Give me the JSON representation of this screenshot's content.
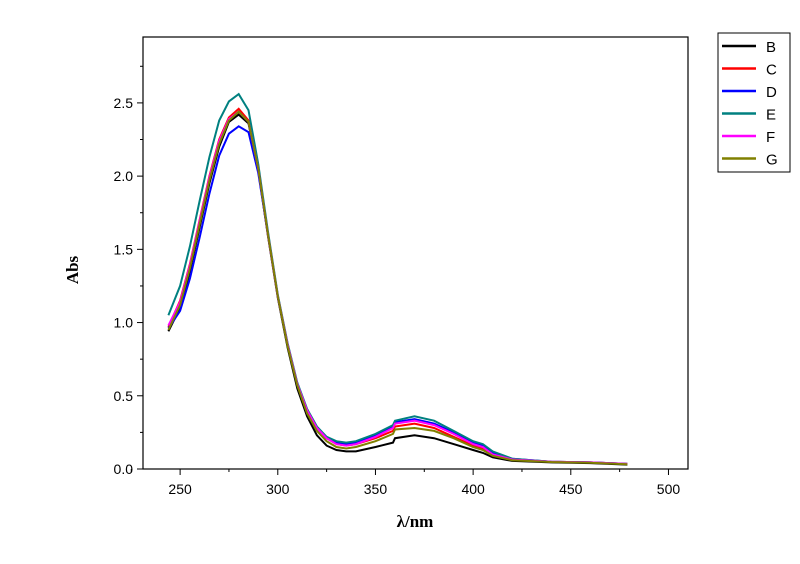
{
  "chart_data": {
    "type": "line",
    "title": "",
    "xlabel": "λ/nm",
    "ylabel": "Abs",
    "xlim": [
      231,
      510
    ],
    "ylim": [
      0,
      2.95
    ],
    "xticks": [
      250,
      300,
      350,
      400,
      450,
      500
    ],
    "xtick_labels": [
      "250",
      "300",
      "350",
      "400",
      "450",
      "500"
    ],
    "yticks": [
      0,
      0.5,
      1.0,
      1.5,
      2.0,
      2.5
    ],
    "ytick_labels": [
      "0.0",
      "0.5",
      "1.0",
      "1.5",
      "2.0",
      "2.5"
    ],
    "grid": false,
    "legend_position": "outside-top-right",
    "x": [
      244,
      250,
      255,
      260,
      265,
      270,
      275,
      280,
      285,
      290,
      295,
      300,
      305,
      310,
      315,
      320,
      325,
      330,
      335,
      340,
      350,
      359,
      360,
      370,
      380,
      390,
      400,
      405,
      410,
      420,
      440,
      460,
      479
    ],
    "series": [
      {
        "name": "B",
        "color": "#000000",
        "values": [
          0.94,
          1.1,
          1.35,
          1.65,
          1.95,
          2.2,
          2.37,
          2.42,
          2.36,
          2.04,
          1.59,
          1.17,
          0.83,
          0.55,
          0.36,
          0.23,
          0.16,
          0.13,
          0.12,
          0.12,
          0.15,
          0.18,
          0.21,
          0.23,
          0.21,
          0.17,
          0.13,
          0.11,
          0.08,
          0.055,
          0.045,
          0.04,
          0.03
        ]
      },
      {
        "name": "C",
        "color": "#ff0000",
        "values": [
          0.97,
          1.15,
          1.4,
          1.7,
          2.0,
          2.25,
          2.4,
          2.46,
          2.38,
          2.05,
          1.6,
          1.18,
          0.85,
          0.58,
          0.4,
          0.28,
          0.21,
          0.17,
          0.16,
          0.17,
          0.21,
          0.26,
          0.29,
          0.31,
          0.28,
          0.22,
          0.16,
          0.14,
          0.1,
          0.065,
          0.05,
          0.045,
          0.035
        ]
      },
      {
        "name": "D",
        "color": "#0000ff",
        "values": [
          0.96,
          1.08,
          1.3,
          1.58,
          1.88,
          2.14,
          2.29,
          2.34,
          2.3,
          2.02,
          1.6,
          1.18,
          0.85,
          0.58,
          0.4,
          0.28,
          0.21,
          0.18,
          0.17,
          0.18,
          0.23,
          0.29,
          0.32,
          0.34,
          0.31,
          0.25,
          0.18,
          0.16,
          0.11,
          0.07,
          0.05,
          0.045,
          0.035
        ]
      },
      {
        "name": "E",
        "color": "#008080",
        "values": [
          1.05,
          1.25,
          1.52,
          1.83,
          2.13,
          2.38,
          2.51,
          2.56,
          2.45,
          2.08,
          1.62,
          1.19,
          0.86,
          0.59,
          0.41,
          0.29,
          0.22,
          0.19,
          0.18,
          0.19,
          0.24,
          0.3,
          0.33,
          0.36,
          0.33,
          0.26,
          0.19,
          0.17,
          0.12,
          0.07,
          0.05,
          0.045,
          0.035
        ]
      },
      {
        "name": "F",
        "color": "#ff00ff",
        "values": [
          0.98,
          1.14,
          1.39,
          1.69,
          1.99,
          2.24,
          2.39,
          2.44,
          2.37,
          2.05,
          1.6,
          1.18,
          0.85,
          0.58,
          0.4,
          0.28,
          0.21,
          0.17,
          0.16,
          0.17,
          0.22,
          0.28,
          0.31,
          0.33,
          0.3,
          0.24,
          0.17,
          0.15,
          0.1,
          0.065,
          0.05,
          0.045,
          0.035
        ]
      },
      {
        "name": "G",
        "color": "#808000",
        "values": [
          0.95,
          1.12,
          1.37,
          1.67,
          1.97,
          2.22,
          2.38,
          2.44,
          2.37,
          2.05,
          1.6,
          1.18,
          0.84,
          0.57,
          0.38,
          0.26,
          0.19,
          0.15,
          0.14,
          0.15,
          0.19,
          0.24,
          0.27,
          0.28,
          0.26,
          0.21,
          0.15,
          0.13,
          0.09,
          0.06,
          0.048,
          0.042,
          0.032
        ]
      }
    ]
  }
}
